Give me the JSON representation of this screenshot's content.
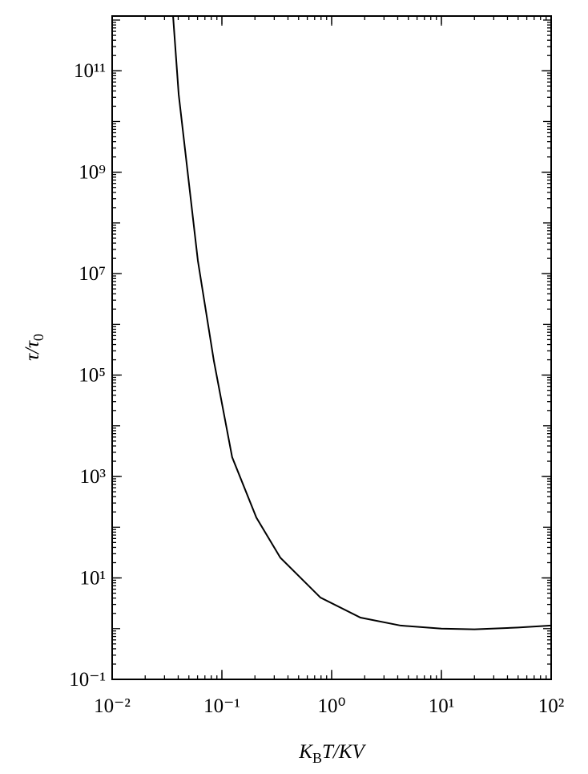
{
  "chart_data": {
    "type": "line",
    "xlabel": [
      "K",
      "B",
      "T/KV"
    ],
    "ylabel": [
      "τ/τ",
      "0"
    ],
    "xscale": "log",
    "yscale": "log",
    "xlim": [
      0.01,
      100
    ],
    "ylim": [
      0.1,
      1200000000000.0
    ],
    "xticks": [
      {
        "value": 0.01,
        "label": "10⁻²"
      },
      {
        "value": 0.1,
        "label": "10⁻¹"
      },
      {
        "value": 1,
        "label": "10⁰"
      },
      {
        "value": 10,
        "label": "10¹"
      },
      {
        "value": 100,
        "label": "10²"
      }
    ],
    "yticks": [
      {
        "value": 0.1,
        "label": "10⁻¹"
      },
      {
        "value": 10,
        "label": "10¹"
      },
      {
        "value": 1000,
        "label": "10³"
      },
      {
        "value": 100000,
        "label": "10⁵"
      },
      {
        "value": 10000000,
        "label": "10⁷"
      },
      {
        "value": 1000000000,
        "label": "10⁹"
      },
      {
        "value": 100000000000,
        "label": "10¹¹"
      }
    ],
    "grid": false,
    "series": [
      {
        "color": "#000000",
        "x": [
          0.0359,
          0.0404,
          0.0604,
          0.0845,
          0.124,
          0.206,
          0.341,
          0.791,
          1.83,
          4.25,
          10,
          20,
          50,
          100
        ],
        "values": [
          1200000000000.0,
          34000000000.0,
          18000000.0,
          190000.0,
          2400,
          155,
          25,
          4.1,
          1.65,
          1.15,
          1.0,
          0.97,
          1.05,
          1.15
        ]
      }
    ]
  }
}
